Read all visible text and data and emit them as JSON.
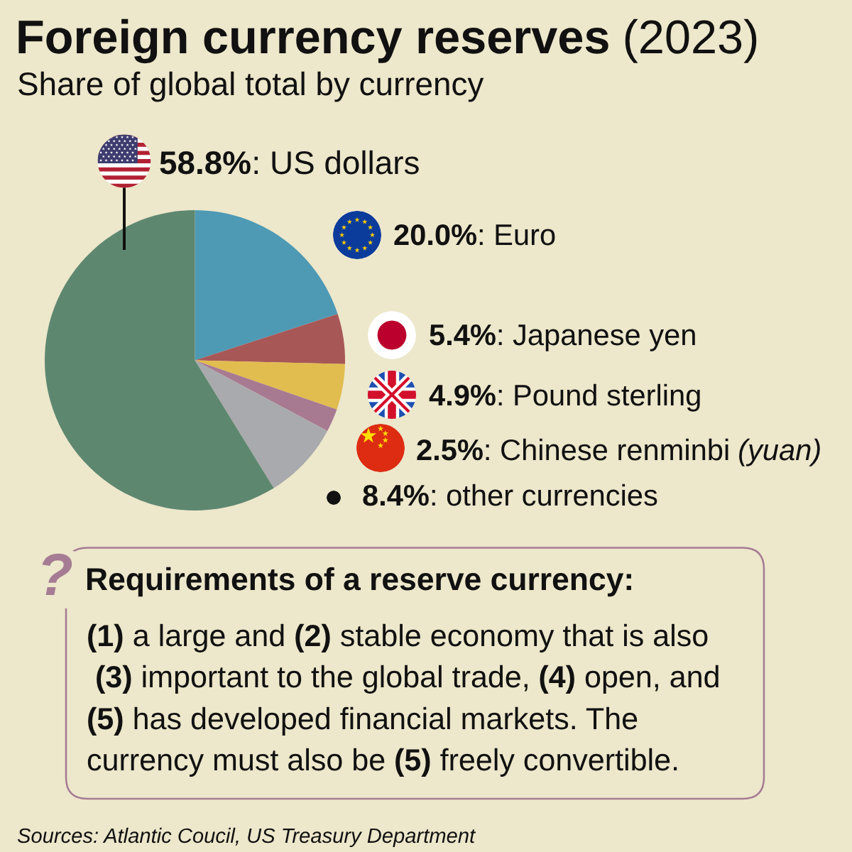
{
  "chart_data": {
    "type": "pie",
    "title": "Foreign currency reserves (2023)",
    "subtitle": "Share of global total by currency",
    "categories": [
      "Euro",
      "Japanese yen",
      "Pound sterling",
      "Chinese renminbi (yuan)",
      "other currencies",
      "US dollars"
    ],
    "values": [
      20.0,
      5.4,
      4.9,
      2.5,
      8.4,
      58.8
    ],
    "value_labels": [
      "20.0%:",
      "5.4%:",
      "4.9%:",
      "2.5%:",
      "8.4%:",
      "58.8%:"
    ],
    "colors": [
      "#4e9ab5",
      "#a85757",
      "#e1bd50",
      "#a87a92",
      "#a9aaad",
      "#5e8770"
    ],
    "annotations": [
      "?",
      "Requirements of a reserve currency:",
      "(1) a large and (2) stable economy that is also",
      " (3) important to the global trade, (4) open, and",
      "(5) has developed financial markets. The",
      "currency must also be (5) freely convertible.",
      "Sources: Atlantic Coucil, US Treasury Department"
    ]
  }
}
